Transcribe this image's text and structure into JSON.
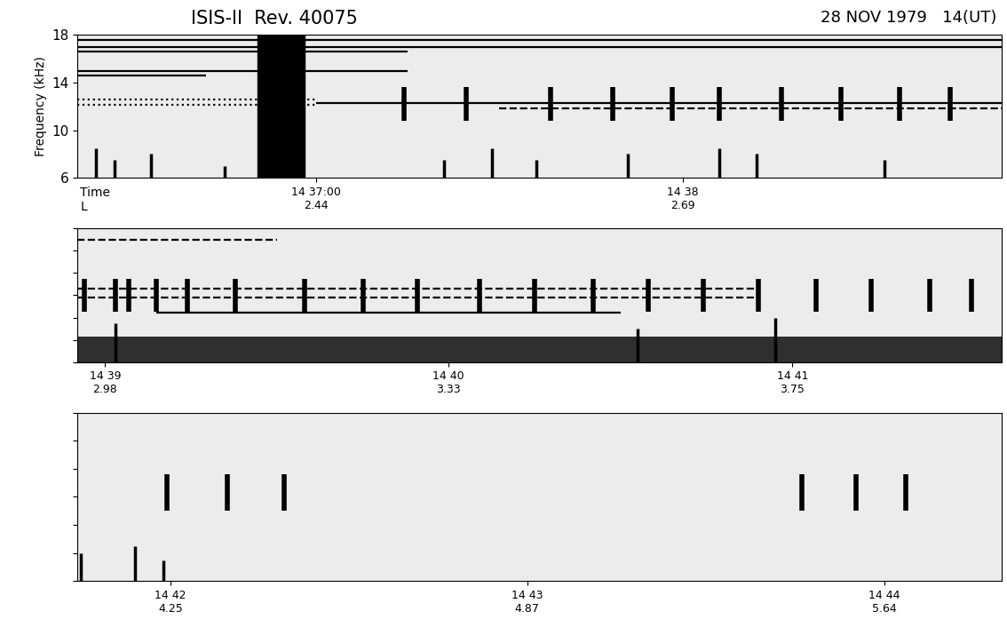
{
  "chart_data": [
    {
      "type": "spectrogram",
      "title": "ISIS-II  Rev. 40075",
      "subtitle": "28 NOV 1979   14(UT)",
      "y_label": "Frequency (kHz)",
      "row_labels": [
        "Time",
        "L"
      ],
      "color": "#000000",
      "xlim": [
        36.35,
        38.87
      ],
      "ylim": [
        6,
        18
      ],
      "yticks": [
        6,
        10,
        14,
        18
      ],
      "tick_labels": true,
      "xticks": [
        {
          "value": 37,
          "label": "14 37:00\n2.44"
        },
        {
          "value": 38,
          "label": "14 38\n2.69"
        }
      ],
      "lines": [
        {
          "freq": 17.6,
          "start": 36.35,
          "end": 38.87,
          "line_style": "solid"
        },
        {
          "freq": 17.0,
          "start": 36.35,
          "end": 38.87,
          "line_style": "solid"
        },
        {
          "freq": 16.6,
          "start": 36.35,
          "end": 37.25,
          "line_style": "solid"
        },
        {
          "freq": 15.0,
          "start": 36.35,
          "end": 37.25,
          "line_style": "solid"
        },
        {
          "freq": 14.6,
          "start": 36.35,
          "end": 36.7,
          "line_style": "solid"
        },
        {
          "freq": 12.6,
          "start": 36.35,
          "end": 37.0,
          "line_style": "dotted"
        },
        {
          "freq": 12.1,
          "start": 36.35,
          "end": 37.0,
          "line_style": "dotted"
        },
        {
          "freq": 12.3,
          "start": 37.0,
          "end": 38.87,
          "line_style": "solid"
        },
        {
          "freq": 11.8,
          "start": 37.5,
          "end": 38.87,
          "line_style": "dashed"
        }
      ],
      "band": [
        36.84,
        36.97
      ],
      "pulse_range": [
        10.8,
        13.6
      ],
      "pulse_times": [
        37.24,
        37.41,
        37.64,
        37.81,
        37.97,
        38.1,
        38.27,
        38.43,
        38.59,
        38.73
      ],
      "bursts": [
        [
          36.4,
          8.5
        ],
        [
          36.45,
          7.5
        ],
        [
          36.55,
          8.0
        ],
        [
          36.75,
          7.0
        ],
        [
          37.35,
          7.5
        ],
        [
          37.48,
          8.5
        ],
        [
          37.6,
          7.5
        ],
        [
          37.85,
          8.0
        ],
        [
          38.1,
          8.5
        ],
        [
          38.2,
          8.0
        ],
        [
          38.55,
          7.5
        ]
      ]
    },
    {
      "type": "spectrogram",
      "color": "#000000",
      "xlim": [
        38.92,
        41.61
      ],
      "ylim": [
        6,
        18
      ],
      "yticks": [
        6,
        8,
        10,
        12,
        14,
        16,
        18
      ],
      "tick_labels": "x",
      "xticks": [
        {
          "value": 39,
          "label": "14 39\n2.98"
        },
        {
          "value": 40,
          "label": "14 40\n3.33"
        },
        {
          "value": 41,
          "label": "14 41\n3.75"
        }
      ],
      "lines": [
        {
          "freq": 17.0,
          "start": 38.92,
          "end": 39.5,
          "line_style": "dashed"
        },
        {
          "freq": 12.6,
          "start": 38.92,
          "end": 40.9,
          "line_style": "dashed"
        },
        {
          "freq": 11.8,
          "start": 38.92,
          "end": 40.9,
          "line_style": "dashed"
        },
        {
          "freq": 10.4,
          "start": 39.15,
          "end": 40.5,
          "line_style": "solid"
        }
      ],
      "pulse_range": [
        10.5,
        13.5
      ],
      "pulse_times": [
        38.94,
        39.03,
        39.07,
        39.15,
        39.24,
        39.38,
        39.58,
        39.75,
        39.91,
        40.09,
        40.25,
        40.42,
        40.58,
        40.74,
        40.9,
        41.07,
        41.23,
        41.4,
        41.52
      ],
      "noise_band": {
        "start": 38.92,
        "end": 41.61,
        "f_lo": 6,
        "f_hi": 8.3
      },
      "bursts": [
        [
          39.03,
          9.5
        ],
        [
          40.55,
          9.0
        ],
        [
          40.95,
          10.0
        ]
      ]
    },
    {
      "type": "spectrogram",
      "color": "#000000",
      "xlim": [
        41.74,
        44.33
      ],
      "ylim": [
        6,
        18
      ],
      "yticks": [
        6,
        8,
        10,
        12,
        14,
        16,
        18
      ],
      "tick_labels": "x",
      "xticks": [
        {
          "value": 42,
          "label": "14 42\n4.25"
        },
        {
          "value": 43,
          "label": "14 43\n4.87"
        },
        {
          "value": 44,
          "label": "14 44\n5.64"
        }
      ],
      "pulse_range": [
        11.0,
        13.6
      ],
      "pulse_times": [
        41.99,
        42.16,
        42.32,
        43.77,
        43.92,
        44.06
      ],
      "bursts": [
        [
          41.75,
          8.0
        ],
        [
          41.9,
          8.5
        ],
        [
          41.98,
          7.5
        ]
      ]
    }
  ]
}
